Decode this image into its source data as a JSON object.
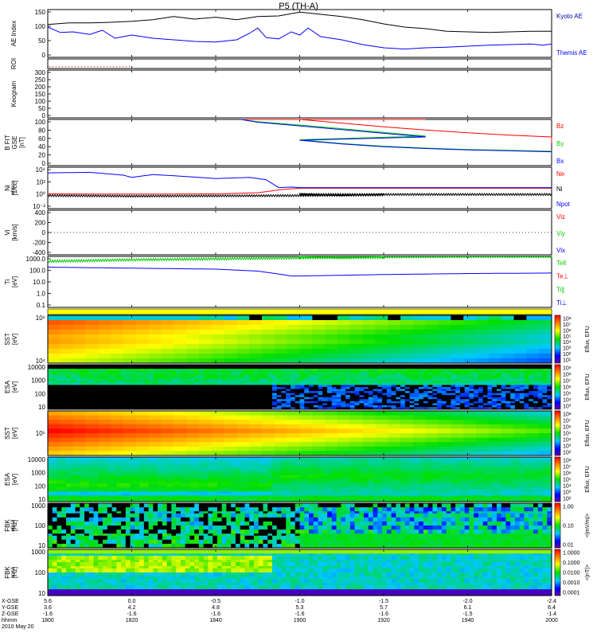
{
  "title": "P5 (TH-A)",
  "footer": {
    "rows": [
      {
        "label": "X-GSE",
        "values": [
          "5.6",
          "0.0",
          "-0.5",
          "-1.0",
          "-1.5",
          "-2.0",
          "-2.4"
        ]
      },
      {
        "label": "Y-GSE",
        "values": [
          "3.6",
          "4.2",
          "4.8",
          "5.3",
          "5.7",
          "6.1",
          "6.4"
        ]
      },
      {
        "label": "Z-GSE",
        "values": [
          "-1.6",
          "-1.6",
          "-1.6",
          "-1.6",
          "-1.6",
          "-1.5",
          "-1.4"
        ]
      },
      {
        "label": "hhmm",
        "values": [
          "1800",
          "1820",
          "1840",
          "1900",
          "1920",
          "1940",
          "2000"
        ]
      }
    ],
    "date": "2010 May 20"
  },
  "colors": {
    "black": "#000000",
    "blue": "#0000ff",
    "red": "#ff0000",
    "green": "#00cc00",
    "ktext": "#0000aa"
  },
  "chart_data": [
    {
      "id": "ae",
      "type": "line",
      "ylabel": "AE Index",
      "yticks": [
        "150",
        "100",
        "50",
        "0"
      ],
      "ylim": [
        0,
        150
      ],
      "series": [
        {
          "name": "Kyoto AE",
          "color": "#000000",
          "x": [
            1800,
            1805,
            1810,
            1815,
            1820,
            1825,
            1830,
            1835,
            1840,
            1845,
            1850,
            1855,
            1900,
            1905,
            1910,
            1915,
            1920,
            1925,
            1930,
            1935,
            1940,
            1945,
            1950,
            1955,
            2000
          ],
          "values": [
            103,
            108,
            108,
            110,
            113,
            118,
            128,
            120,
            126,
            118,
            128,
            130,
            142,
            135,
            128,
            118,
            105,
            95,
            90,
            82,
            80,
            78,
            80,
            82,
            82
          ]
        },
        {
          "name": "Themis AE",
          "color": "#0000ff",
          "x": [
            1800,
            1803,
            1806,
            1810,
            1813,
            1816,
            1820,
            1825,
            1830,
            1835,
            1840,
            1845,
            1848,
            1850,
            1852,
            1855,
            1858,
            1900,
            1902,
            1905,
            1910,
            1915,
            1920,
            1925,
            1930,
            1935,
            1940,
            1945,
            1950,
            1955,
            1958,
            2000
          ],
          "values": [
            95,
            78,
            80,
            72,
            85,
            60,
            70,
            60,
            55,
            50,
            48,
            55,
            75,
            92,
            62,
            58,
            80,
            70,
            92,
            65,
            55,
            40,
            30,
            26,
            30,
            32,
            35,
            38,
            40,
            42,
            38,
            42
          ]
        }
      ]
    },
    {
      "id": "roi",
      "type": "line",
      "ylabel": "ROI",
      "yticks": [],
      "ylim": [
        0,
        1
      ],
      "series": [
        {
          "name": "",
          "color": "#ff0000",
          "x": [
            1800,
            1820
          ],
          "values": [
            0.2,
            0.2
          ]
        }
      ]
    },
    {
      "id": "keogram",
      "type": "line",
      "ylabel": "Keogram",
      "yticks": [
        "300",
        "250",
        "200",
        "150",
        "100",
        "50",
        "0"
      ],
      "ylim": [
        0,
        300
      ],
      "series": []
    },
    {
      "id": "bfit",
      "type": "line",
      "ylabel_lines": [
        "B FIT",
        "GSE",
        "[nT]"
      ],
      "yticks": [
        "100",
        "80",
        "60",
        "40",
        "20",
        "0"
      ],
      "ylim": [
        0,
        100
      ],
      "series": [
        {
          "name": "Bz",
          "color": "#ff0000",
          "x": [
            1846,
            1850,
            1860,
            1870,
            1880,
            1890,
            1900,
            1910,
            1920,
            1930,
            1940,
            1950,
            1960,
            2000
          ],
          "values": [
            100,
            100,
            100,
            100,
            100,
            100,
            100,
            92,
            84,
            77,
            71,
            66,
            62,
            49
          ]
        },
        {
          "name": "By",
          "color": "#00cc00",
          "x": [
            1846,
            1850,
            1860,
            1870,
            1880,
            1890,
            1900,
            1910,
            1920,
            1930,
            1940,
            1950,
            1960,
            2000
          ],
          "values": [
            100,
            95,
            88,
            80,
            72,
            64,
            56,
            48,
            42,
            38,
            35,
            33,
            31,
            27
          ]
        },
        {
          "name": "Bx",
          "color": "#0000ff",
          "x": [
            1846,
            1850,
            1860,
            1870,
            1880,
            1890,
            1900,
            1910,
            1920,
            1930,
            1940,
            1950,
            1960,
            2000
          ],
          "values": [
            100,
            94,
            86,
            78,
            70,
            62,
            55,
            47,
            41,
            37,
            34,
            32,
            30,
            27
          ]
        }
      ]
    },
    {
      "id": "ni",
      "type": "line",
      "ylabel_lines": [
        "Ni",
        "[1/cc]"
      ],
      "ylabel_small": "eNpcc",
      "yticks": [
        "10⁴",
        "10²",
        "10⁰",
        "10⁻²"
      ],
      "ylim_log10": [
        -2.5,
        4.8
      ],
      "series": [
        {
          "name": "Ne",
          "color": "#ff0000",
          "x": [
            1800,
            1820,
            1840,
            1850,
            1855,
            1858,
            1900,
            1920,
            1940,
            1960,
            2000
          ],
          "values": [
            0.1,
            0.05,
            0.1,
            0.3,
            0.8,
            1.0,
            1.1,
            1.1,
            1.1,
            1.1,
            1.1
          ]
        },
        {
          "name": "Ni",
          "color": "#000000",
          "x": [
            1800,
            1820,
            1840,
            1860,
            1880,
            1900,
            1920,
            1940,
            1960,
            2000
          ],
          "values": [
            -0.2,
            -0.3,
            -0.25,
            -0.2,
            -0.1,
            0.0,
            0.0,
            0.0,
            0.0,
            0.0
          ]
        },
        {
          "name": "Npot",
          "color": "#0000ff",
          "x": [
            1800,
            1810,
            1818,
            1820,
            1825,
            1830,
            1840,
            1848,
            1852,
            1855,
            1858,
            1900,
            1920,
            1940,
            1960,
            2000
          ],
          "values": [
            3.8,
            3.9,
            3.4,
            3.0,
            3.5,
            3.3,
            2.8,
            3.0,
            2.6,
            1.2,
            1.3,
            1.2,
            1.2,
            1.2,
            1.2,
            1.2
          ]
        }
      ]
    },
    {
      "id": "vi",
      "type": "line",
      "ylabel_lines": [
        "Vi",
        "[km/s]"
      ],
      "yticks": [
        "400",
        "200",
        "0",
        "-200",
        "-400"
      ],
      "ylim": [
        -400,
        400
      ],
      "series": [
        {
          "name": "Viz",
          "color": "#ff0000",
          "x": [],
          "values": []
        },
        {
          "name": "Viy",
          "color": "#00cc00",
          "x": [],
          "values": []
        },
        {
          "name": "Vix",
          "color": "#0000ff",
          "x": [],
          "values": []
        }
      ]
    },
    {
      "id": "ti",
      "type": "line",
      "ylabel_lines": [
        "Ti",
        "[eV]"
      ],
      "yticks": [
        "1000.0",
        "100.0",
        "10.0",
        "1.0",
        "0.1"
      ],
      "ylim_log10": [
        -1.6,
        3.6
      ],
      "series": [
        {
          "name": "Tell",
          "color": "#00cc00",
          "x": [
            1800,
            1820,
            1840,
            1860,
            1880,
            1900,
            1920,
            1940,
            1960,
            2000
          ],
          "values": [
            3.1,
            3.25,
            3.35,
            3.45,
            3.5,
            3.55,
            3.55,
            3.6,
            3.6,
            3.6
          ]
        },
        {
          "name": "Te⊥",
          "color": "#ff0000",
          "x": [],
          "values": []
        },
        {
          "name": "Ti∥",
          "color": "#00cc00",
          "x": [],
          "values": []
        },
        {
          "name": "Ti⊥",
          "color": "#0000ff",
          "x": [
            1800,
            1820,
            1840,
            1850,
            1855,
            1858,
            1900,
            1920,
            1940,
            1960,
            2000
          ],
          "values": [
            2.5,
            2.4,
            2.3,
            2.1,
            1.8,
            1.6,
            1.6,
            1.75,
            1.85,
            1.9,
            1.9
          ]
        }
      ]
    },
    {
      "id": "sst_e",
      "type": "heatmap",
      "ylabel_lines": [
        "SST",
        "[eV]"
      ],
      "yticks": [
        "10⁶",
        "10⁴"
      ],
      "cbar_label": "Eflux, EFU",
      "cbar_ticks": [
        "10⁸",
        "10⁷",
        "10⁶",
        "10⁵",
        "10⁴",
        "10³",
        "10²",
        "10¹"
      ]
    },
    {
      "id": "esa_e",
      "type": "heatmap",
      "ylabel_lines": [
        "ESA",
        "[eV]"
      ],
      "yticks": [
        "10000",
        "1000",
        "100",
        "10"
      ],
      "cbar_label": "Eflux, EFU",
      "cbar_ticks": [
        "10⁹",
        "10⁸",
        "10⁷",
        "10⁶",
        "10⁵",
        "10⁴",
        "10³"
      ]
    },
    {
      "id": "sst_i",
      "type": "heatmap",
      "ylabel_lines": [
        "SST",
        "[eV]"
      ],
      "yticks": [
        "10⁵"
      ],
      "cbar_label": "Eflux, EFU",
      "cbar_ticks": [
        "10⁸",
        "10⁷",
        "10⁶",
        "10⁵",
        "10⁴",
        "10³",
        "10²"
      ]
    },
    {
      "id": "esa_i",
      "type": "heatmap",
      "ylabel_lines": [
        "ESA",
        "[eV]"
      ],
      "yticks": [
        "10000",
        "1000",
        "100",
        "10"
      ],
      "cbar_label": "Eflux, EFU",
      "cbar_ticks": [
        "10⁸",
        "10⁷",
        "10⁶",
        "10⁵",
        "10⁴",
        "10³",
        "10²"
      ]
    },
    {
      "id": "fbk_e",
      "type": "heatmap",
      "ylabel_lines": [
        "FBK",
        "[Hz]"
      ],
      "ylabel_small": "efp12",
      "yticks": [
        "1000",
        "100",
        "10"
      ],
      "cbar_label": "<|mV/m|>",
      "cbar_ticks": [
        "1.00",
        "0.10",
        "0.01"
      ]
    },
    {
      "id": "fbk_b",
      "type": "heatmap",
      "ylabel_lines": [
        "FBK",
        "[Hz]"
      ],
      "ylabel_small": "scm1",
      "yticks": [
        "1000",
        "100",
        "10"
      ],
      "cbar_label": "<|nT|>",
      "cbar_ticks": [
        "1.0000",
        "0.1000",
        "0.0100",
        "0.0010",
        "0.0001"
      ]
    }
  ]
}
